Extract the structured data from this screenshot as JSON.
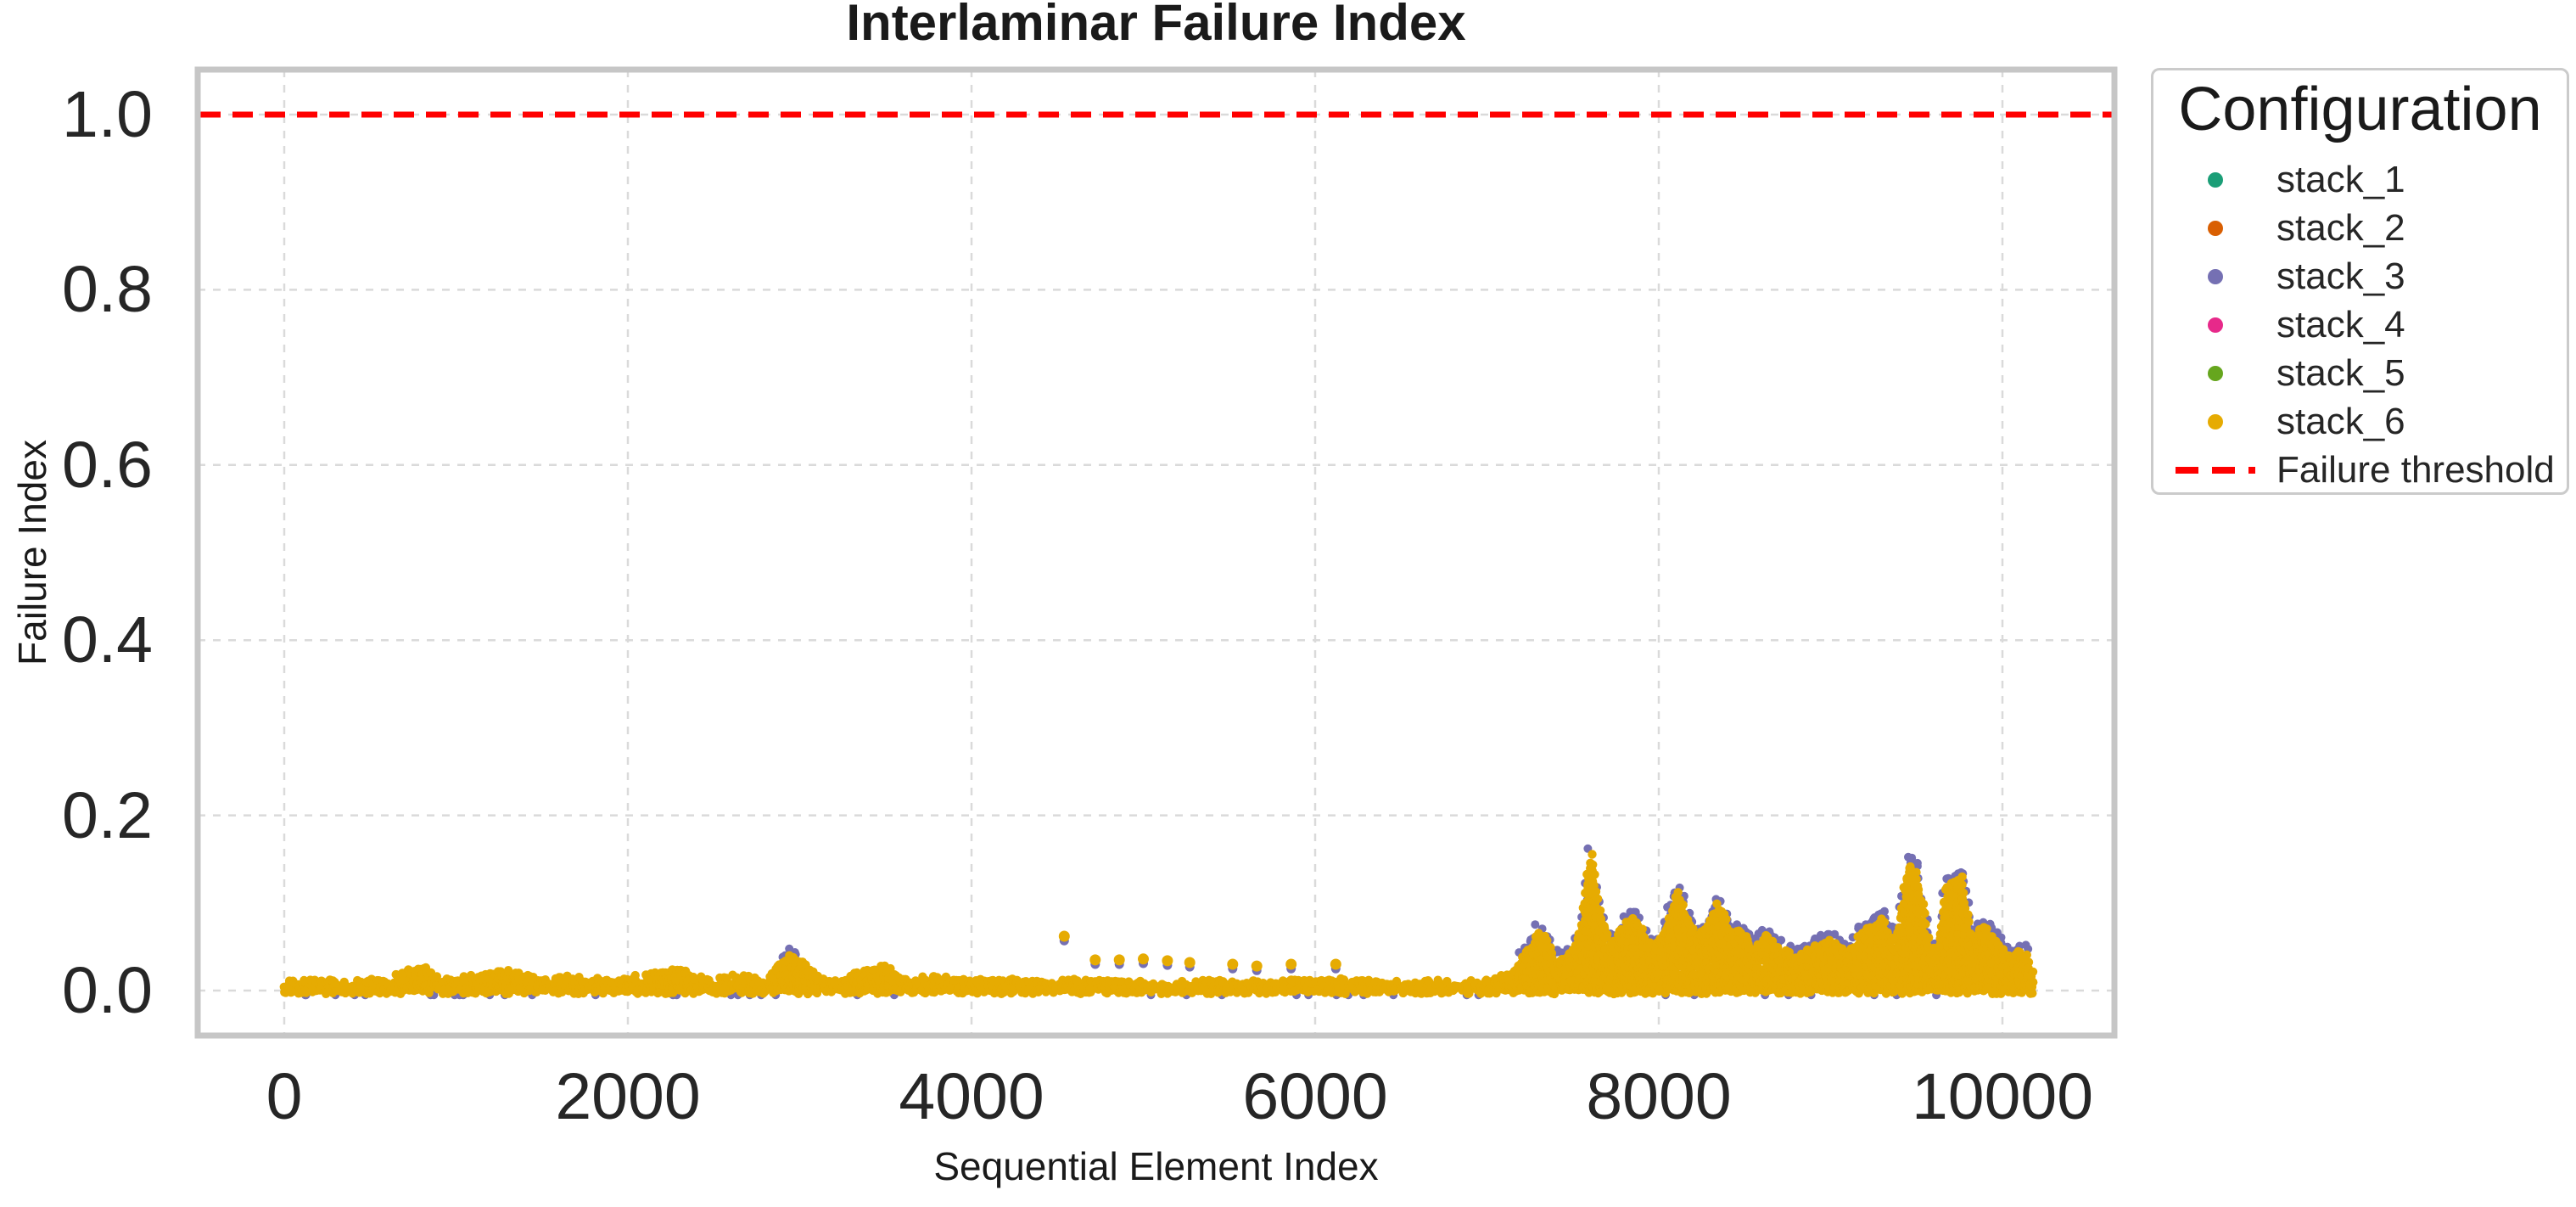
{
  "chart_data": {
    "type": "scatter",
    "title": "Interlaminar Failure Index",
    "xlabel": "Sequential Element Index",
    "ylabel": "Failure Index",
    "xlim": [
      -530,
      10650
    ],
    "ylim": [
      -0.05,
      1.05
    ],
    "xticks": [
      0,
      2000,
      4000,
      6000,
      8000,
      10000
    ],
    "yticks": [
      "0.0",
      "0.2",
      "0.4",
      "0.6",
      "0.8",
      "1.0"
    ],
    "grid": true,
    "grid_style": "dashed",
    "legend": {
      "title": "Configuration",
      "position": "outside-right-top",
      "entries": [
        {
          "label": "stack_1",
          "color": "#1b9e77",
          "marker": "dot"
        },
        {
          "label": "stack_2",
          "color": "#d95f02",
          "marker": "dot"
        },
        {
          "label": "stack_3",
          "color": "#7570b3",
          "marker": "dot"
        },
        {
          "label": "stack_4",
          "color": "#e7298a",
          "marker": "dot"
        },
        {
          "label": "stack_5",
          "color": "#66a61e",
          "marker": "dot"
        },
        {
          "label": "stack_6",
          "color": "#e6ab02",
          "marker": "dot"
        },
        {
          "label": "Failure threshold",
          "color": "#ff0000",
          "marker": "dashed-line"
        }
      ]
    },
    "threshold": {
      "label": "Failure threshold",
      "value": 1.0,
      "color": "#ff0000",
      "style": "dashed"
    },
    "colors": {
      "grid": "#dadada",
      "spine": "#c6c6c6",
      "visible_top_series": "#e6ab02",
      "visible_under_series": "#7570b3",
      "text": "#262626"
    },
    "x_data_range": [
      0,
      10180
    ],
    "baseline_band": 0.012,
    "draw_order_note": "six overlapping series; stack_6 (amber) plotted last covers others, stack_3 (purple) peeks at spike tops and tails",
    "envelope": [
      [
        0,
        0.01
      ],
      [
        200,
        0.014
      ],
      [
        400,
        0.01
      ],
      [
        600,
        0.016
      ],
      [
        800,
        0.03
      ],
      [
        900,
        0.014
      ],
      [
        1100,
        0.018
      ],
      [
        1300,
        0.024
      ],
      [
        1500,
        0.013
      ],
      [
        1700,
        0.018
      ],
      [
        1900,
        0.013
      ],
      [
        2100,
        0.02
      ],
      [
        2300,
        0.026
      ],
      [
        2450,
        0.014
      ],
      [
        2600,
        0.018
      ],
      [
        2800,
        0.016
      ],
      [
        2950,
        0.042
      ],
      [
        3050,
        0.028
      ],
      [
        3150,
        0.013
      ],
      [
        3350,
        0.022
      ],
      [
        3500,
        0.03
      ],
      [
        3600,
        0.013
      ],
      [
        3800,
        0.018
      ],
      [
        4000,
        0.012
      ],
      [
        4200,
        0.015
      ],
      [
        4400,
        0.012
      ],
      [
        4600,
        0.013
      ],
      [
        4800,
        0.011
      ],
      [
        5000,
        0.011
      ],
      [
        5200,
        0.012
      ],
      [
        5400,
        0.01
      ],
      [
        5600,
        0.012
      ],
      [
        5800,
        0.013
      ],
      [
        6000,
        0.012
      ],
      [
        6200,
        0.016
      ],
      [
        6400,
        0.01
      ],
      [
        6600,
        0.012
      ],
      [
        6800,
        0.01
      ],
      [
        7000,
        0.013
      ],
      [
        7150,
        0.022
      ],
      [
        7250,
        0.05
      ],
      [
        7310,
        0.07
      ],
      [
        7400,
        0.035
      ],
      [
        7500,
        0.045
      ],
      [
        7560,
        0.08
      ],
      [
        7600,
        0.158
      ],
      [
        7660,
        0.085
      ],
      [
        7720,
        0.05
      ],
      [
        7780,
        0.07
      ],
      [
        7850,
        0.085
      ],
      [
        7910,
        0.07
      ],
      [
        7960,
        0.045
      ],
      [
        8020,
        0.06
      ],
      [
        8100,
        0.115
      ],
      [
        8160,
        0.085
      ],
      [
        8220,
        0.06
      ],
      [
        8280,
        0.075
      ],
      [
        8350,
        0.1
      ],
      [
        8420,
        0.065
      ],
      [
        8480,
        0.07
      ],
      [
        8550,
        0.045
      ],
      [
        8620,
        0.065
      ],
      [
        8700,
        0.05
      ],
      [
        8800,
        0.038
      ],
      [
        8900,
        0.052
      ],
      [
        9000,
        0.058
      ],
      [
        9100,
        0.045
      ],
      [
        9200,
        0.07
      ],
      [
        9300,
        0.082
      ],
      [
        9380,
        0.05
      ],
      [
        9450,
        0.145
      ],
      [
        9500,
        0.135
      ],
      [
        9560,
        0.065
      ],
      [
        9620,
        0.035
      ],
      [
        9680,
        0.12
      ],
      [
        9760,
        0.13
      ],
      [
        9820,
        0.055
      ],
      [
        9880,
        0.075
      ],
      [
        9950,
        0.06
      ],
      [
        10000,
        0.05
      ],
      [
        10060,
        0.035
      ],
      [
        10110,
        0.048
      ],
      [
        10160,
        0.03
      ],
      [
        10180,
        0.02
      ]
    ],
    "isolated_points": [
      [
        4540,
        0.062
      ],
      [
        4720,
        0.035
      ],
      [
        4860,
        0.035
      ],
      [
        5000,
        0.036
      ],
      [
        5140,
        0.034
      ],
      [
        5270,
        0.032
      ],
      [
        5520,
        0.03
      ],
      [
        5660,
        0.028
      ],
      [
        5860,
        0.03
      ],
      [
        6120,
        0.03
      ]
    ]
  }
}
